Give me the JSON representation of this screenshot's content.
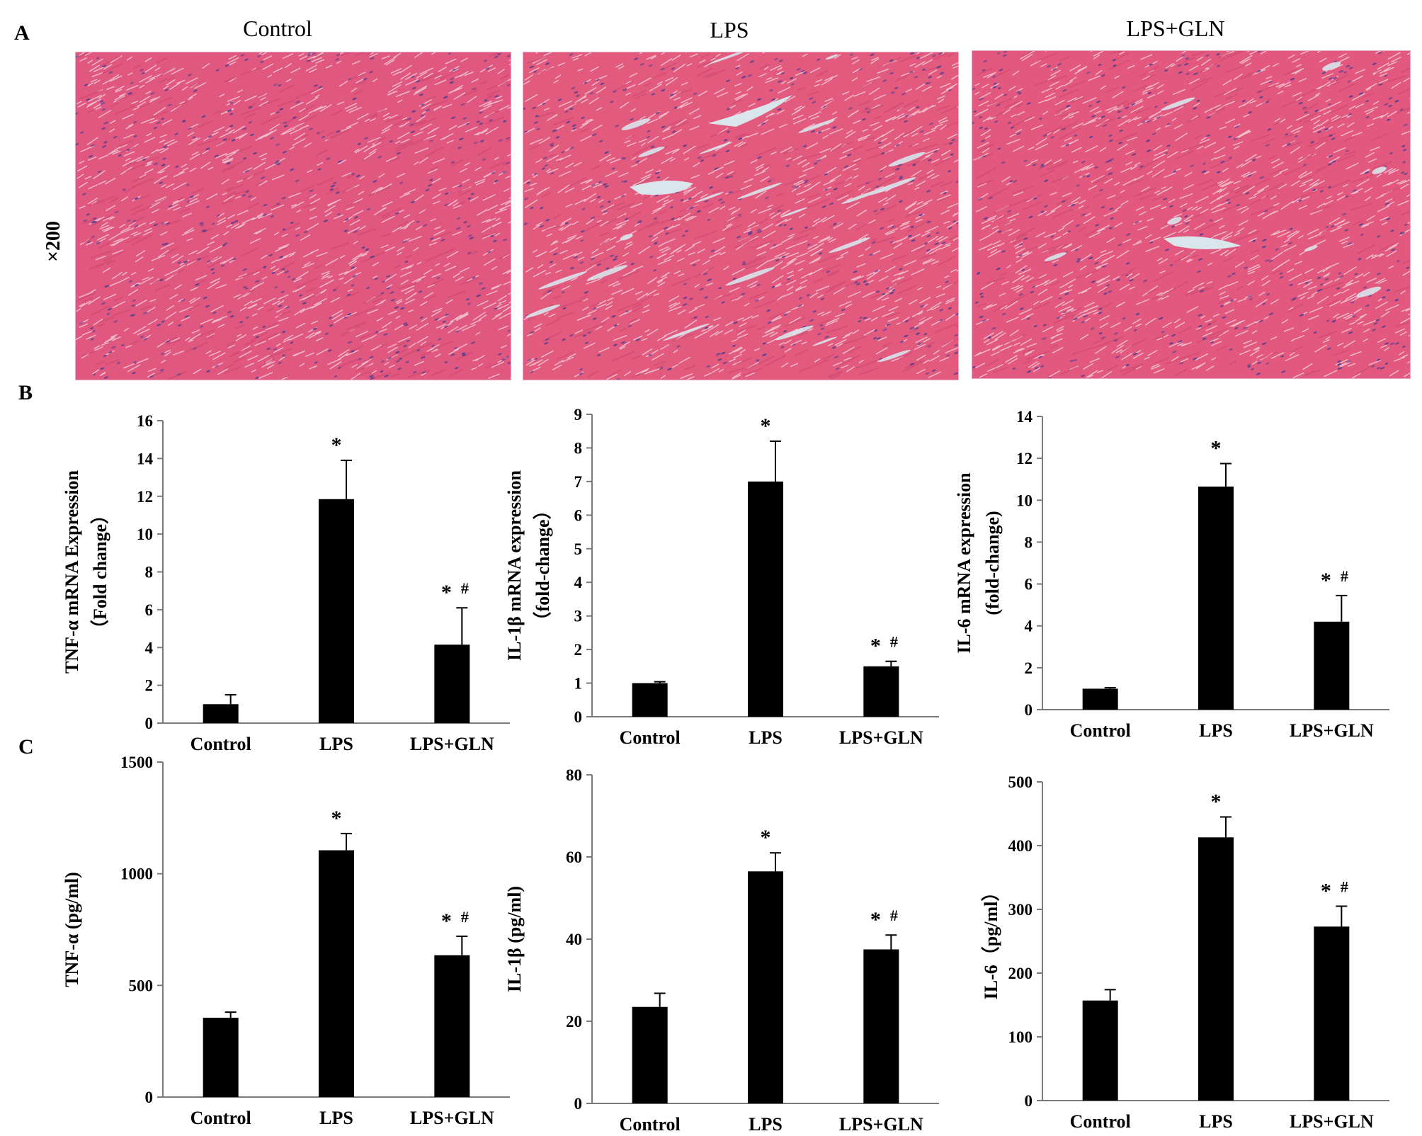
{
  "panel_labels": [
    "A",
    "B",
    "C"
  ],
  "magnification": "×200",
  "images": [
    {
      "title": "Control",
      "tissue": "normal-myocardium",
      "base_color": "#e0577f"
    },
    {
      "title": "LPS",
      "tissue": "myocardium-with-interstitial-gaps",
      "base_color": "#e35a7f"
    },
    {
      "title": "LPS+GLN",
      "tissue": "myocardium-mild-damage",
      "base_color": "#e2587e"
    }
  ],
  "chart_data": [
    {
      "type": "bar",
      "categories": [
        "Control",
        "LPS",
        "LPS+GLN"
      ],
      "values": [
        1.0,
        11.85,
        4.15
      ],
      "errors": [
        0.5,
        2.05,
        1.95
      ],
      "marks": [
        "",
        "*",
        "* #"
      ],
      "ylabel_lines": [
        "TNF-α mRNA Expression",
        "（Fold  change）"
      ],
      "ylim": [
        0,
        16
      ],
      "yticks": [
        "0",
        "2",
        "4",
        "6",
        "8",
        "10",
        "12",
        "14",
        "16"
      ]
    },
    {
      "type": "bar",
      "categories": [
        "Control",
        "LPS",
        "LPS+GLN"
      ],
      "values": [
        1.0,
        7.0,
        1.5
      ],
      "errors": [
        0.04,
        1.2,
        0.15
      ],
      "marks": [
        "",
        "*",
        "* #"
      ],
      "ylabel_lines": [
        "IL-1β mRNA expression",
        "（fold-change）"
      ],
      "ylim": [
        0,
        9
      ],
      "yticks": [
        "0",
        "1",
        "2",
        "3",
        "4",
        "5",
        "6",
        "7",
        "8",
        "9"
      ]
    },
    {
      "type": "bar",
      "categories": [
        "Control",
        "LPS",
        "LPS+GLN"
      ],
      "values": [
        1.0,
        10.65,
        4.2
      ],
      "errors": [
        0.05,
        1.1,
        1.25
      ],
      "marks": [
        "",
        "*",
        "* #"
      ],
      "ylabel_lines": [
        "IL-6 mRNA expression",
        "(fold-change)"
      ],
      "ylim": [
        0,
        14
      ],
      "yticks": [
        "0",
        "2",
        "4",
        "6",
        "8",
        "10",
        "12",
        "14"
      ]
    },
    {
      "type": "bar",
      "categories": [
        "Control",
        "LPS",
        "LPS+GLN"
      ],
      "values": [
        355,
        1105,
        635
      ],
      "errors": [
        25,
        75,
        85
      ],
      "marks": [
        "",
        "*",
        "* #"
      ],
      "ylabel_lines": [
        "TNF-α  (pg/ml)"
      ],
      "ylim": [
        0,
        1500
      ],
      "yticks": [
        "0",
        "500",
        "1000",
        "1500"
      ]
    },
    {
      "type": "bar",
      "categories": [
        "Control",
        "LPS",
        "LPS+GLN"
      ],
      "values": [
        23.5,
        56.5,
        37.5
      ],
      "errors": [
        3.3,
        4.5,
        3.5
      ],
      "marks": [
        "",
        "*",
        "* #"
      ],
      "ylabel_lines": [
        "IL-1β (pg/ml)"
      ],
      "ylim": [
        0,
        80
      ],
      "yticks": [
        "0",
        "20",
        "40",
        "60",
        "80"
      ]
    },
    {
      "type": "bar",
      "categories": [
        "Control",
        "LPS",
        "LPS+GLN"
      ],
      "values": [
        157,
        413,
        273
      ],
      "errors": [
        17,
        32,
        32
      ],
      "marks": [
        "",
        "*",
        "* #"
      ],
      "ylabel_lines": [
        "IL-6（pg/ml）"
      ],
      "ylim": [
        0,
        500
      ],
      "yticks": [
        "0",
        "100",
        "200",
        "300",
        "400",
        "500"
      ]
    }
  ]
}
